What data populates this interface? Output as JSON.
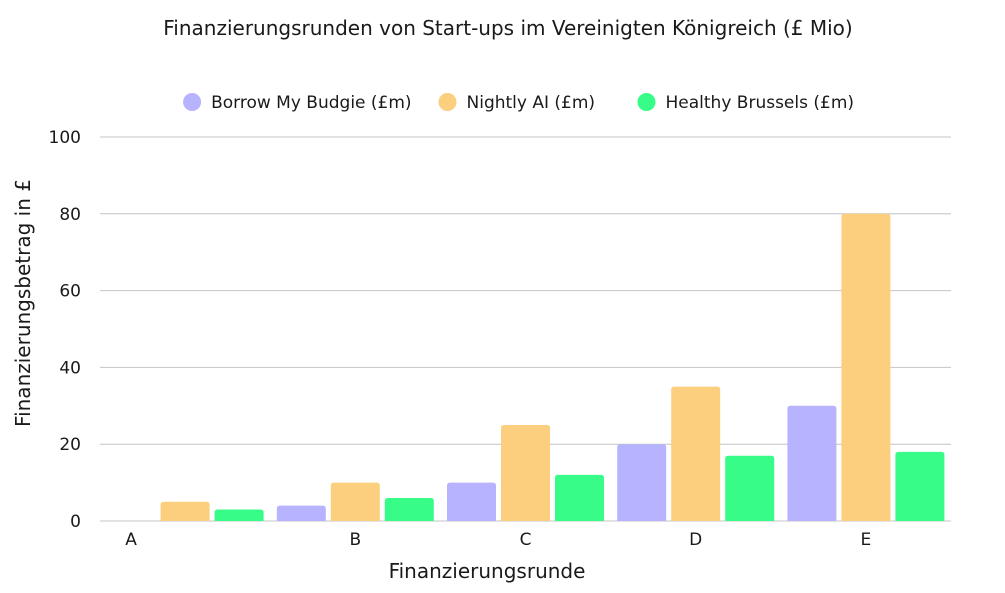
{
  "chart_data": {
    "type": "bar",
    "title": "Finanzierungsrunden von Start-ups im Vereinigten Königreich (£ Mio)",
    "xlabel": "Finanzierungsrunde",
    "ylabel": "Finanzierungsbetrag in £",
    "categories": [
      "A",
      "B",
      "C",
      "D",
      "E"
    ],
    "ylim": [
      0,
      100
    ],
    "yticks": [
      0,
      20,
      40,
      60,
      80,
      100
    ],
    "grid": true,
    "legend_position": "top",
    "series": [
      {
        "name": "Borrow My Budgie (£m)",
        "color": "#b7b3ff",
        "values": [
          0,
          4,
          10,
          20,
          30
        ]
      },
      {
        "name": "Nightly AI (£m)",
        "color": "#fccf7f",
        "values": [
          5,
          10,
          25,
          35,
          80
        ]
      },
      {
        "name": "Healthy Brussels (£m)",
        "color": "#38fc88",
        "values": [
          3,
          6,
          12,
          17,
          18
        ]
      }
    ]
  }
}
